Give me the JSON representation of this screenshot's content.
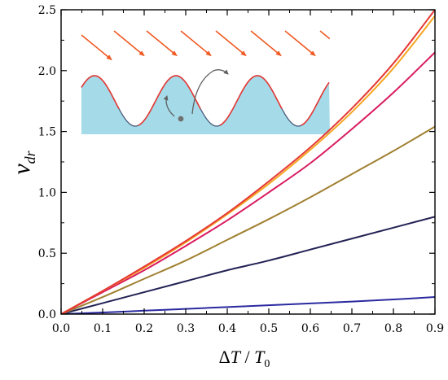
{
  "chart_data": {
    "type": "line",
    "title": "",
    "xlabel": "ΔT / T₀",
    "ylabel": "v_dr",
    "xlabel_parts": {
      "delta": "Δ",
      "T": "T",
      "slash": " / ",
      "T0": "T",
      "sub": "0"
    },
    "ylabel_parts": {
      "v": "v",
      "sub": "dr"
    },
    "xlim": [
      0,
      0.9
    ],
    "ylim": [
      0,
      2.5
    ],
    "xticks": [
      "0.0",
      "0.1",
      "0.2",
      "0.3",
      "0.4",
      "0.5",
      "0.6",
      "0.7",
      "0.8",
      "0.9"
    ],
    "yticks": [
      "0.0",
      "0.5",
      "1.0",
      "1.5",
      "2.0",
      "2.5"
    ],
    "grid": false,
    "legend": false,
    "series": [
      {
        "color": "#2a2aa0",
        "x": [
          0,
          0.1,
          0.2,
          0.3,
          0.4,
          0.5,
          0.6,
          0.7,
          0.8,
          0.9
        ],
        "y": [
          0,
          0.013,
          0.028,
          0.043,
          0.058,
          0.073,
          0.088,
          0.103,
          0.12,
          0.14
        ]
      },
      {
        "color": "#222255",
        "x": [
          0,
          0.1,
          0.2,
          0.3,
          0.4,
          0.5,
          0.6,
          0.7,
          0.8,
          0.9
        ],
        "y": [
          0,
          0.09,
          0.18,
          0.27,
          0.36,
          0.44,
          0.53,
          0.62,
          0.71,
          0.8
        ]
      },
      {
        "color": "#a08030",
        "x": [
          0,
          0.1,
          0.2,
          0.3,
          0.4,
          0.5,
          0.6,
          0.7,
          0.8,
          0.9
        ],
        "y": [
          0,
          0.14,
          0.29,
          0.44,
          0.61,
          0.78,
          0.96,
          1.15,
          1.34,
          1.54
        ]
      },
      {
        "color": "#d81b60",
        "x": [
          0,
          0.1,
          0.2,
          0.3,
          0.4,
          0.5,
          0.6,
          0.7,
          0.8,
          0.9
        ],
        "y": [
          0,
          0.18,
          0.36,
          0.56,
          0.77,
          1.0,
          1.24,
          1.52,
          1.82,
          2.15
        ]
      },
      {
        "color": "#f5a623",
        "x": [
          0,
          0.1,
          0.2,
          0.3,
          0.4,
          0.5,
          0.6,
          0.7,
          0.8,
          0.9
        ],
        "y": [
          0,
          0.19,
          0.38,
          0.59,
          0.82,
          1.07,
          1.35,
          1.66,
          2.02,
          2.45
        ]
      },
      {
        "color": "#e53935",
        "x": [
          0,
          0.1,
          0.2,
          0.3,
          0.4,
          0.5,
          0.6,
          0.7,
          0.8,
          0.9
        ],
        "y": [
          0,
          0.19,
          0.39,
          0.6,
          0.83,
          1.09,
          1.37,
          1.69,
          2.06,
          2.5
        ]
      }
    ],
    "inset": {
      "surface_color": "#a5dbe8",
      "surface_edge_color": "#4a5a7a",
      "illuminated_edge_color": "#e53935",
      "arrow_color": "#f05a22",
      "particle_color": "#707070",
      "particle_arrow_color": "#606060"
    }
  }
}
